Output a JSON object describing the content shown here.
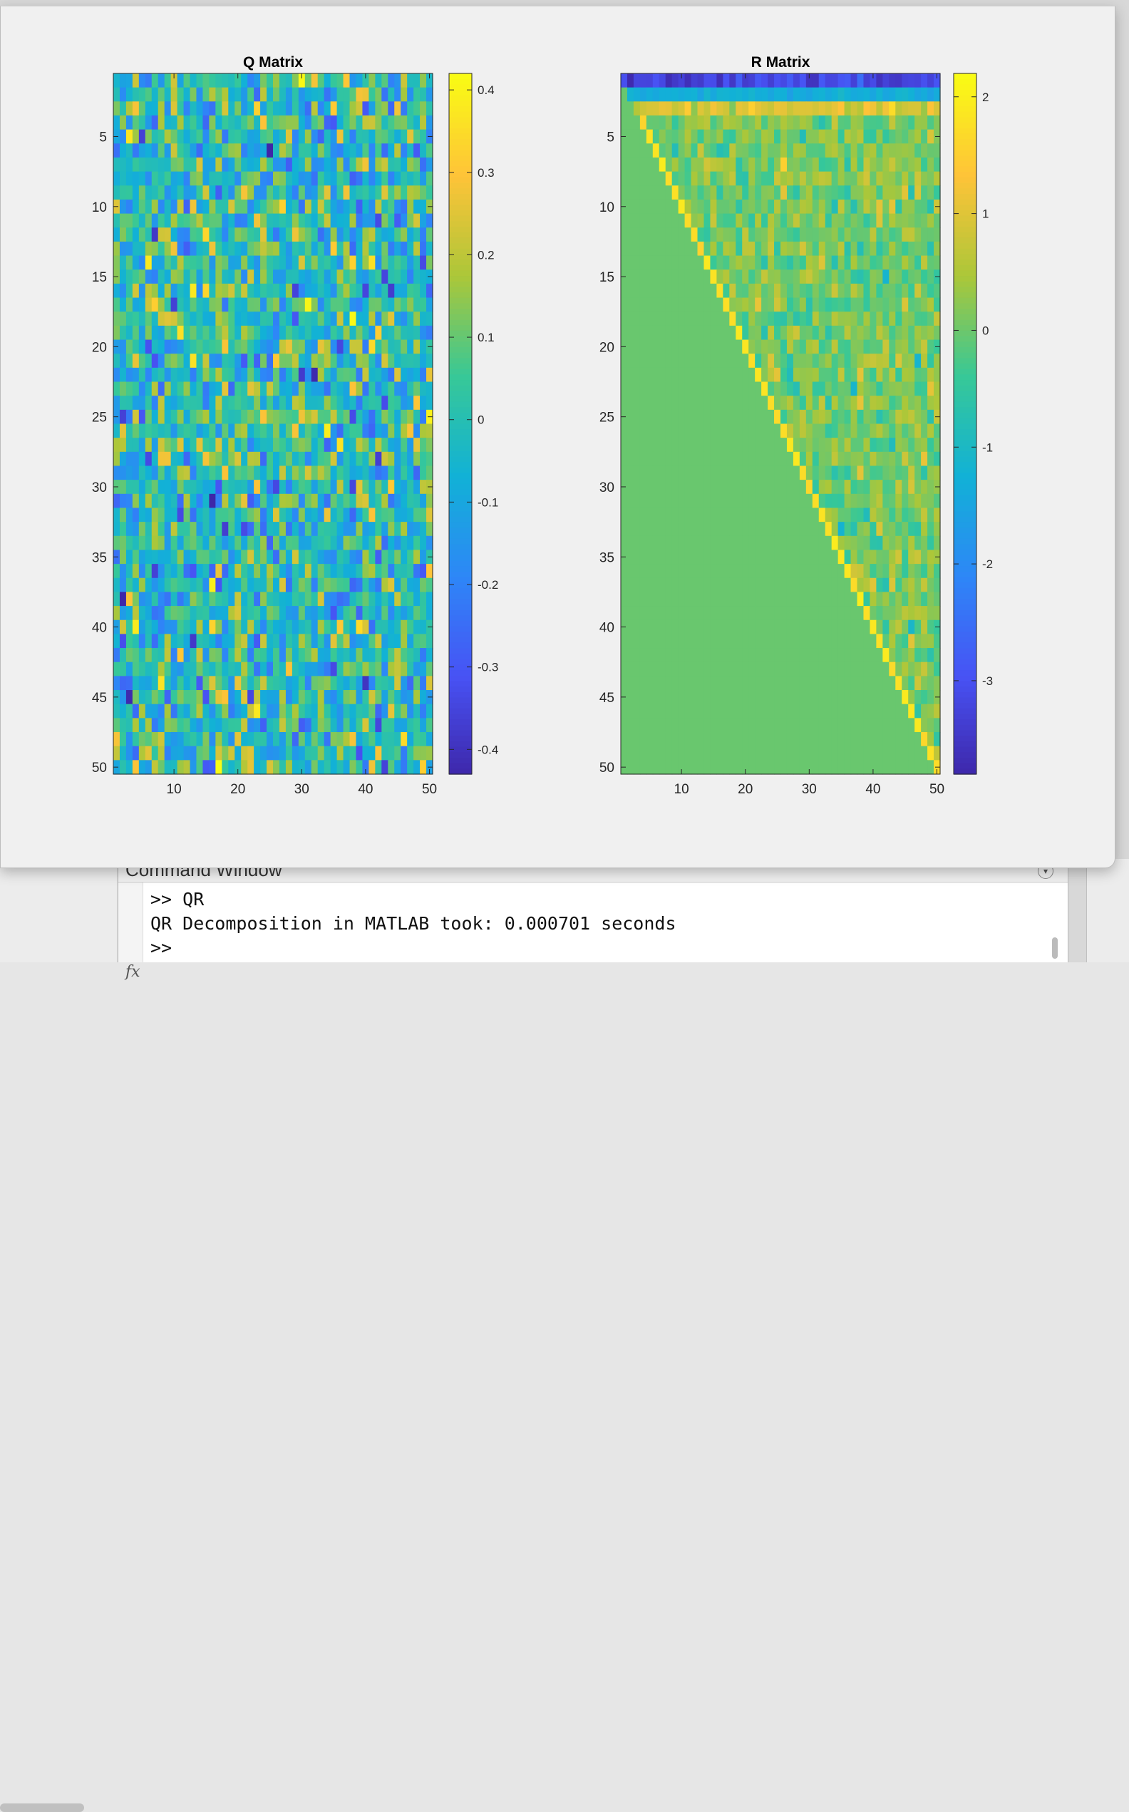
{
  "figure": {
    "charts": [
      "Q Matrix",
      "R Matrix"
    ]
  },
  "command_window": {
    "title": "Command Window",
    "lines": [
      ">> QR",
      "QR Decomposition in MATLAB took: 0.000701 seconds",
      ">>"
    ],
    "fx_icon": "fx"
  },
  "chart_data": [
    {
      "type": "heatmap",
      "title": "Q Matrix",
      "rows": 50,
      "cols": 50,
      "x_ticks": [
        10,
        20,
        30,
        40,
        50
      ],
      "y_ticks": [
        5,
        10,
        15,
        20,
        25,
        30,
        35,
        40,
        45,
        50
      ],
      "clim": [
        -0.43,
        0.42
      ],
      "colorbar_ticks": [
        0.4,
        0.3,
        0.2,
        0.1,
        0,
        -0.1,
        -0.2,
        -0.3,
        -0.4
      ],
      "colormap": "parula",
      "pattern": "random values approximately uniform in [-0.43, 0.42]",
      "value_distribution": {
        "mean": 0.0,
        "std": 0.14
      }
    },
    {
      "type": "heatmap",
      "title": "R Matrix",
      "rows": 50,
      "cols": 50,
      "x_ticks": [
        10,
        20,
        30,
        40,
        50
      ],
      "y_ticks": [
        5,
        10,
        15,
        20,
        25,
        30,
        35,
        40,
        45,
        50
      ],
      "clim": [
        -3.8,
        2.2
      ],
      "colorbar_ticks": [
        2,
        1,
        0,
        -1,
        -2,
        -3
      ],
      "colormap": "parula",
      "pattern": "upper triangular; zero below diagonal",
      "row1_value": -3.2,
      "row2_value": -1.3,
      "row3_value": 0.9,
      "below_diagonal_value": 0,
      "diagonal_value": 2.0,
      "off_diagonal_distribution": {
        "mean": 0.1,
        "std": 0.4
      }
    }
  ],
  "colors": {
    "figure_bg": "#f0f0f0",
    "axis": "#262626",
    "parula_low": "#3e26a8",
    "parula_high": "#f9fb0e"
  }
}
